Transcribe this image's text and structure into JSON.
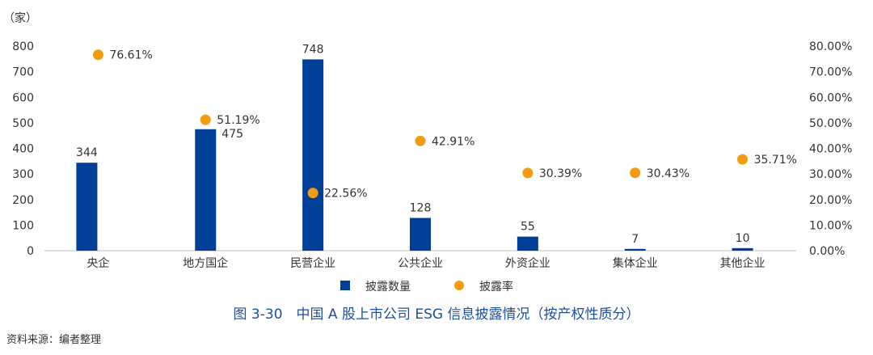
{
  "chart_data": {
    "type": "bar",
    "categories": [
      "央企",
      "地方国企",
      "民营企业",
      "公共企业",
      "外资企业",
      "集体企业",
      "其他企业"
    ],
    "series": [
      {
        "name": "披露数量",
        "kind": "bar",
        "axis": "left",
        "color": "#003f98",
        "values": [
          344,
          475,
          748,
          128,
          55,
          7,
          10
        ],
        "labels": [
          "344",
          "475",
          "748",
          "128",
          "55",
          "7",
          "10"
        ]
      },
      {
        "name": "披露率",
        "kind": "scatter",
        "axis": "right",
        "color": "#f39c12",
        "values": [
          76.61,
          51.19,
          22.56,
          42.91,
          30.39,
          30.43,
          35.71
        ],
        "labels": [
          "76.61%",
          "51.19%",
          "22.56%",
          "42.91%",
          "30.39%",
          "30.43%",
          "35.71%"
        ]
      }
    ],
    "left_unit": "（家）",
    "ylim": [
      0,
      800
    ],
    "yticks": [
      "0",
      "100",
      "200",
      "300",
      "400",
      "500",
      "600",
      "700",
      "800"
    ],
    "y2lim": [
      0,
      80
    ],
    "y2ticks": [
      "0.00%",
      "10.00%",
      "20.00%",
      "30.00%",
      "40.00%",
      "50.00%",
      "60.00%",
      "70.00%",
      "80.00%"
    ],
    "grid": false,
    "legend_position": "bottom-center"
  },
  "caption": "图 3-30　中国 A 股上市公司 ESG 信息披露情况（按产权性质分）",
  "source": "资料来源：编者整理"
}
